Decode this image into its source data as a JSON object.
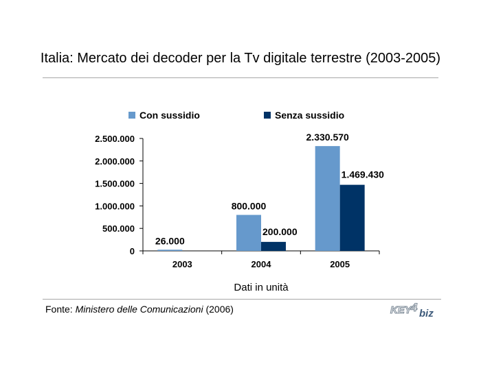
{
  "title": "Italia: Mercato dei decoder per la Tv digitale terrestre (2003-2005)",
  "source": {
    "prefix": "Fonte: ",
    "name": "Ministero delle Comunicazioni",
    "suffix": " (2006)"
  },
  "logo": {
    "text_a": "KEY",
    "text_b": "4",
    "text_c": "biz",
    "icon": "key4biz-logo"
  },
  "colors": {
    "con": "#6699cc",
    "senza": "#003366"
  },
  "chart_data": {
    "type": "bar",
    "categories": [
      "2003",
      "2004",
      "2005"
    ],
    "series": [
      {
        "name": "Con sussidio",
        "values": [
          26000,
          800000,
          2330570
        ],
        "labels": [
          "26.000",
          "800.000",
          "2.330.570"
        ]
      },
      {
        "name": "Senza sussidio",
        "values": [
          0,
          200000,
          1469430
        ],
        "labels": [
          "",
          "200.000",
          "1.469.430"
        ]
      }
    ],
    "xlabel": "Dati in unità",
    "ylabel": "",
    "ylim": [
      0,
      2500000
    ],
    "yticks": [
      0,
      500000,
      1000000,
      1500000,
      2000000,
      2500000
    ],
    "ytick_labels": [
      "0",
      "500.000",
      "1.000.000",
      "1.500.000",
      "2.000.000",
      "2.500.000"
    ],
    "grid": false,
    "legend": "top"
  }
}
